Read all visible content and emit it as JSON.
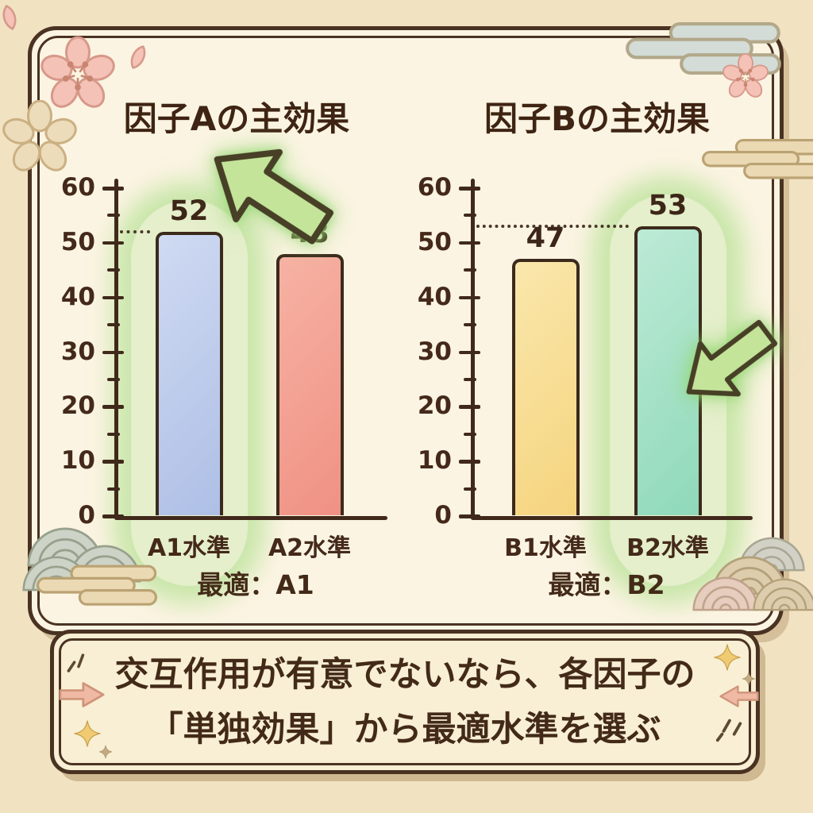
{
  "colors": {
    "outer_background": "#f1e2c2",
    "panel_background": "#fbf4e2",
    "frame_border": "#4a3222",
    "text_brown": "#44291a",
    "glow_green": "#9edb7a",
    "arrow_green_fill": "#c4e49a",
    "banner_background": "#f8efd4",
    "banner_arrow_pink": "#efb9a4",
    "sparkle_gold": "#f0cb72",
    "sakura_pink": "#f4c2b7"
  },
  "chart_data": [
    {
      "type": "bar",
      "title": "因子Aの主効果",
      "categories": [
        "A1水準",
        "A2水準"
      ],
      "values": [
        52,
        48
      ],
      "ylim": [
        0,
        60
      ],
      "ytick_step": 10,
      "minor_tick_step": 5,
      "grid": false,
      "legend": false,
      "bar_colors": [
        "#aebfe6",
        "#ef9184"
      ],
      "bar_colors_light": [
        "#cfdaf2",
        "#f7b2a3"
      ],
      "highlight_index": 0,
      "dotted_guide_value": 52,
      "annotation": "最適：A1",
      "arrow_direction": "down-left"
    },
    {
      "type": "bar",
      "title": "因子Bの主効果",
      "categories": [
        "B1水準",
        "B2水準"
      ],
      "values": [
        47,
        53
      ],
      "ylim": [
        0,
        60
      ],
      "ytick_step": 10,
      "minor_tick_step": 5,
      "grid": false,
      "legend": false,
      "bar_colors": [
        "#f5d47e",
        "#8fd9ba"
      ],
      "bar_colors_light": [
        "#fae7ac",
        "#bdead6"
      ],
      "highlight_index": 1,
      "dotted_guide_value": 53,
      "annotation": "最適：B2",
      "arrow_direction": "up-left"
    }
  ],
  "banner": {
    "line1": "交互作用が有意でないなら、各因子の",
    "line2": "「単独効果」から最適水準を選ぶ"
  },
  "decorations": {
    "top_left": [
      "sakura-flower",
      "sakura-petal",
      "beige-flower"
    ],
    "top_right": [
      "grey-cloud",
      "sakura-flower",
      "tan-cloud"
    ],
    "bottom_left": [
      "seigaiha-waves",
      "tan-cloud"
    ],
    "bottom_right": [
      "seigaiha-waves"
    ],
    "banner_sides": [
      "pink-arrow-right",
      "pink-arrow-left",
      "sparkles",
      "dash-marks"
    ]
  }
}
